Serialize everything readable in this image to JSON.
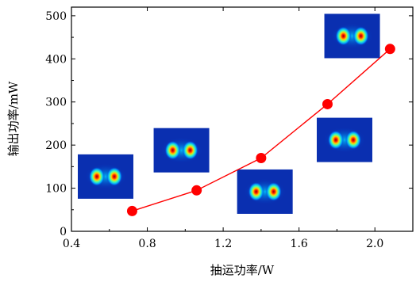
{
  "chart_data": {
    "type": "line",
    "xlabel": "抽运功率/W",
    "ylabel": "输出功率/mW",
    "xlim": [
      0.4,
      2.2
    ],
    "ylim": [
      0,
      520
    ],
    "xticks": [
      0.4,
      0.8,
      1.2,
      1.6,
      2.0
    ],
    "xtick_labels": [
      "0.4",
      "0.8",
      "1.2",
      "1.6",
      "2.0"
    ],
    "yticks": [
      0,
      100,
      200,
      300,
      400,
      500
    ],
    "ytick_labels": [
      "0",
      "100",
      "200",
      "300",
      "400",
      "500"
    ],
    "grid": false,
    "series": [
      {
        "x": [
          0.72,
          1.06,
          1.4,
          1.75,
          2.08
        ],
        "y": [
          47,
          95,
          170,
          295,
          423
        ],
        "color": "#ff0000"
      }
    ],
    "insets": [
      {
        "description": "beam profile",
        "anchor_x": 0.58,
        "anchor_y": 127
      },
      {
        "description": "beam profile",
        "anchor_x": 0.98,
        "anchor_y": 188
      },
      {
        "description": "beam profile",
        "anchor_x": 1.42,
        "anchor_y": 92
      },
      {
        "description": "beam profile",
        "anchor_x": 1.84,
        "anchor_y": 212
      },
      {
        "description": "beam profile",
        "anchor_x": 1.88,
        "anchor_y": 453
      }
    ]
  }
}
